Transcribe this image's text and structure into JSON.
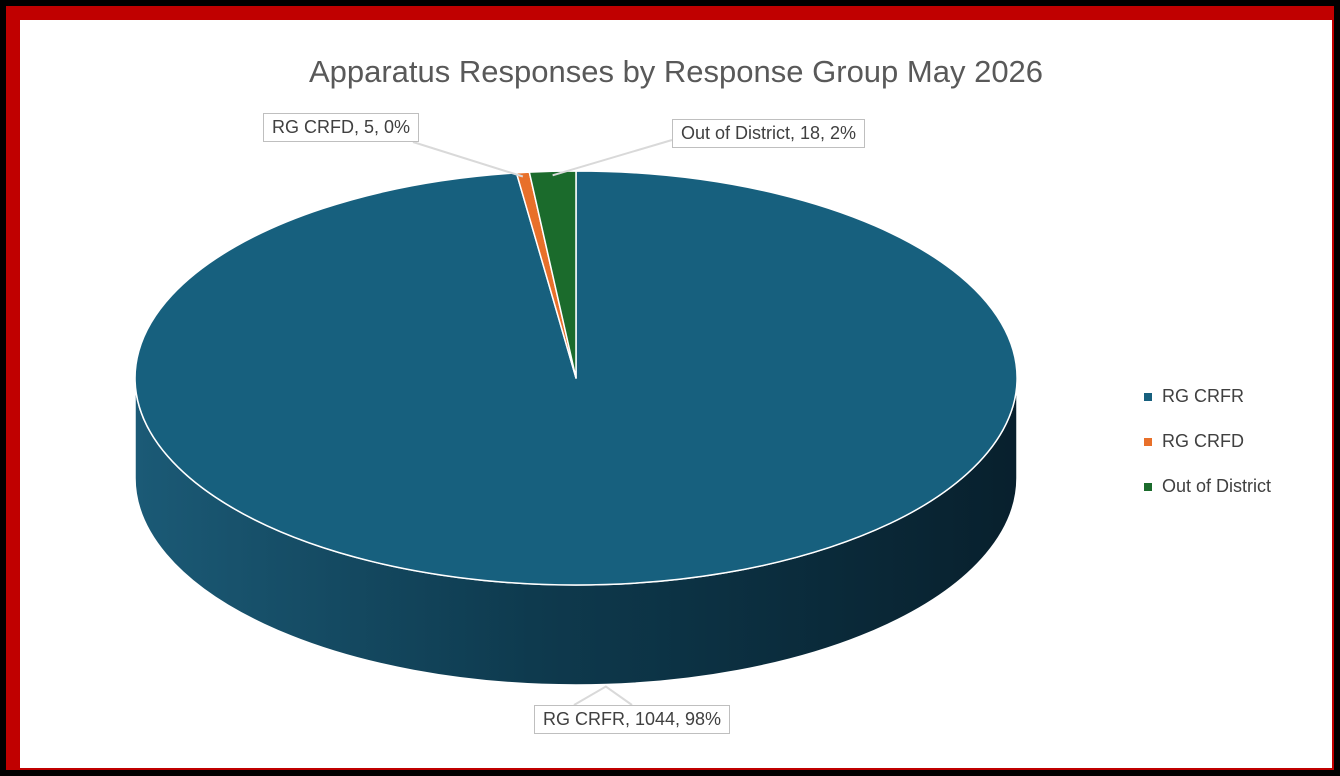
{
  "chart_data": {
    "type": "pie",
    "title": "Apparatus Responses by Response Group May 2026",
    "labels": [
      "RG CRFR",
      "RG CRFD",
      "Out of District"
    ],
    "values": [
      1044,
      5,
      18
    ],
    "percents": [
      "98%",
      "0%",
      "2%"
    ],
    "colors": [
      "#17607e",
      "#e8702a",
      "#1b6b2c"
    ],
    "data_labels": [
      "RG CRFR, 1044, 98%",
      "RG CRFD, 5, 0%",
      "Out of District, 18, 2%"
    ],
    "legend_position": "right",
    "style": "3d"
  },
  "frame": {
    "border_color": "#c00000",
    "outer_color": "#000000"
  }
}
